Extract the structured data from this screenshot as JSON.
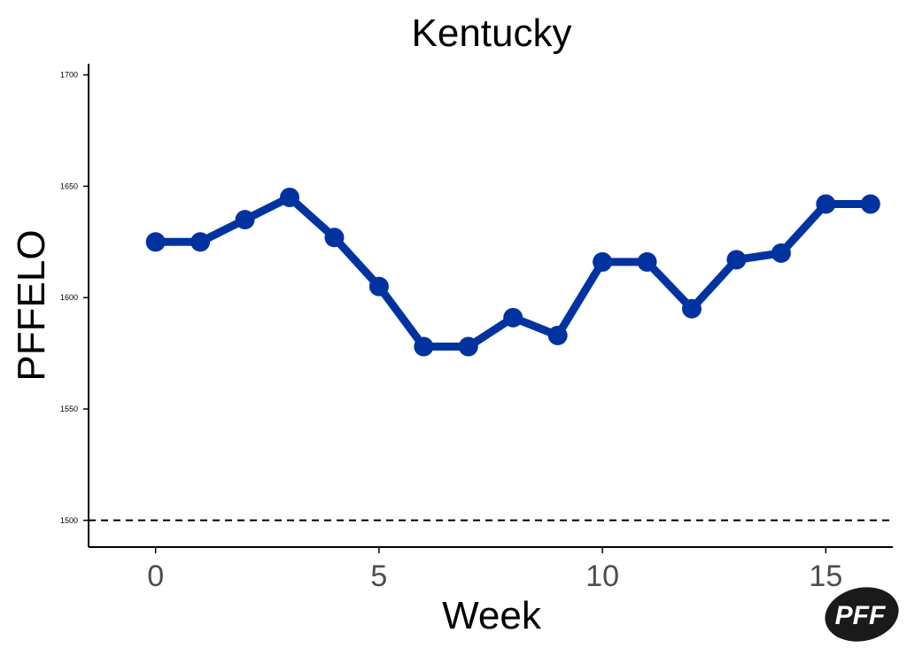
{
  "chart_data": {
    "type": "line",
    "title": "Kentucky",
    "xlabel": "Week",
    "ylabel": "PFFELO",
    "xlim": [
      -1.5,
      16.5
    ],
    "ylim": [
      1488,
      1705
    ],
    "xticks": [
      "0",
      "5",
      "10",
      "15"
    ],
    "yticks": [
      "1500",
      "1550",
      "1600",
      "1650",
      "1700"
    ],
    "reference_line": {
      "y": 1500,
      "style": "dashed"
    },
    "grid": false,
    "series": [
      {
        "color": "#0033a0",
        "x": [
          0,
          1,
          2,
          3,
          4,
          5,
          6,
          7,
          8,
          9,
          10,
          11,
          12,
          13,
          14,
          15,
          16
        ],
        "values": [
          1625,
          1625,
          1635,
          1645,
          1627,
          1605,
          1578,
          1578,
          1591,
          1583,
          1616,
          1616,
          1595,
          1617,
          1620,
          1642,
          1642
        ]
      }
    ]
  },
  "logo": {
    "text": "PFF",
    "color": "#1a1a1a"
  }
}
